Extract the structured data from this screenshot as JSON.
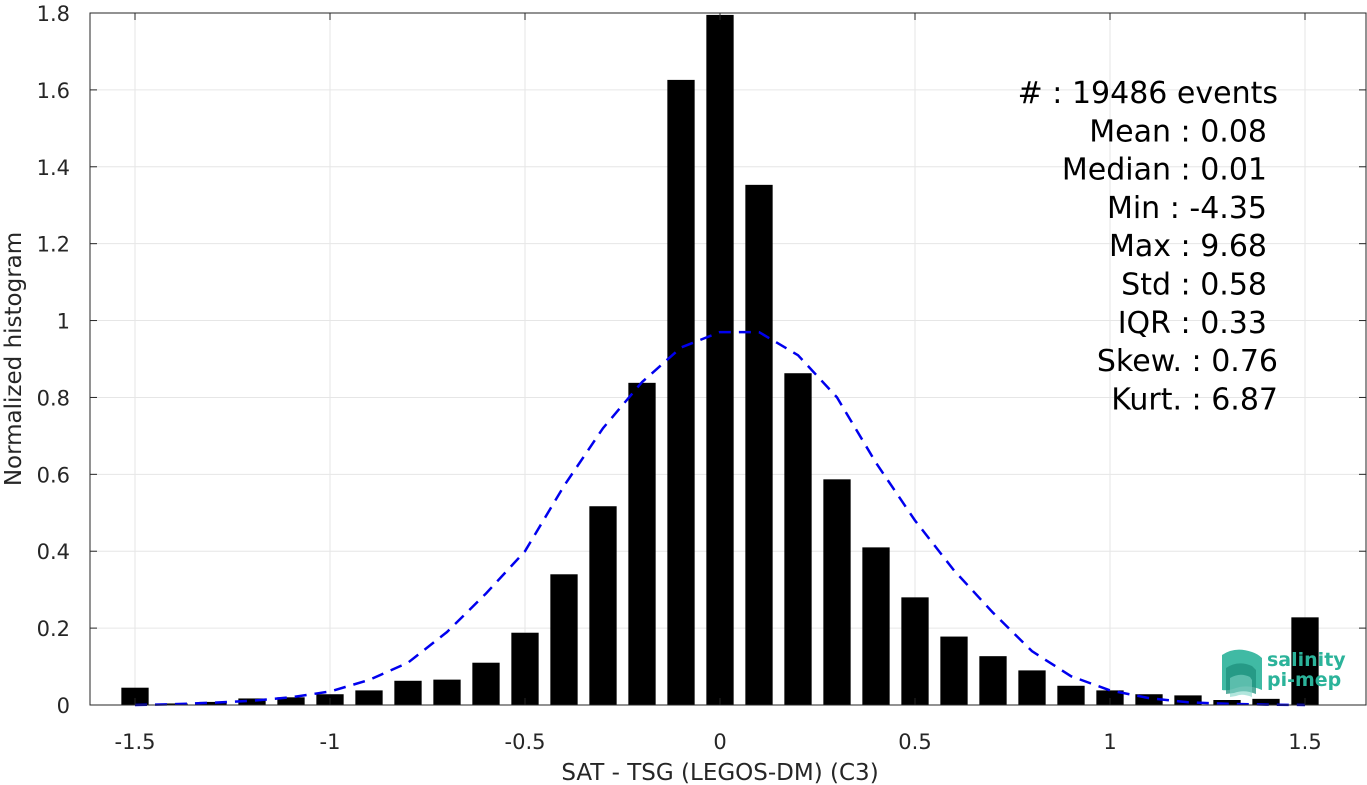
{
  "chart_data": {
    "type": "bar",
    "xlabel": "SAT - TSG (LEGOS-DM) (C3)",
    "ylabel": "Normalized histogram",
    "xlim": [
      -1.55,
      1.55
    ],
    "ylim": [
      0,
      1.8
    ],
    "xticks": [
      -1.5,
      -1,
      -0.5,
      0,
      0.5,
      1,
      1.5
    ],
    "xtick_labels": [
      "-1.5",
      "-1",
      "-0.5",
      "0",
      "0.5",
      "1",
      "1.5"
    ],
    "yticks": [
      0,
      0.2,
      0.4,
      0.6,
      0.8,
      1,
      1.2,
      1.4,
      1.6,
      1.8
    ],
    "ytick_labels": [
      "0",
      "0.2",
      "0.4",
      "0.6",
      "0.8",
      "1",
      "1.2",
      "1.4",
      "1.6",
      "1.8"
    ],
    "grid": true,
    "bar_color": "#000000",
    "bar_width": 0.07,
    "bars": {
      "x": [
        -1.5,
        -1.4,
        -1.3,
        -1.2,
        -1.1,
        -1.0,
        -0.9,
        -0.8,
        -0.7,
        -0.6,
        -0.5,
        -0.4,
        -0.3,
        -0.2,
        -0.1,
        0.0,
        0.1,
        0.2,
        0.3,
        0.4,
        0.5,
        0.6,
        0.7,
        0.8,
        0.9,
        1.0,
        1.1,
        1.2,
        1.3,
        1.4,
        1.5
      ],
      "values": [
        0.045,
        0.004,
        0.008,
        0.017,
        0.02,
        0.028,
        0.038,
        0.063,
        0.066,
        0.11,
        0.188,
        0.34,
        0.517,
        0.838,
        1.626,
        1.795,
        1.353,
        0.863,
        0.587,
        0.41,
        0.28,
        0.178,
        0.127,
        0.09,
        0.05,
        0.038,
        0.028,
        0.025,
        0.013,
        0.016,
        0.228
      ]
    },
    "fit_curve": {
      "style": "dashed",
      "color": "#0000ee",
      "x": [
        -1.5,
        -1.4,
        -1.3,
        -1.2,
        -1.1,
        -1.0,
        -0.9,
        -0.8,
        -0.7,
        -0.6,
        -0.5,
        -0.4,
        -0.3,
        -0.2,
        -0.1,
        0.0,
        0.1,
        0.2,
        0.3,
        0.4,
        0.5,
        0.6,
        0.7,
        0.8,
        0.9,
        1.0,
        1.1,
        1.2,
        1.3,
        1.4,
        1.5
      ],
      "y": [
        0.0,
        0.002,
        0.006,
        0.011,
        0.02,
        0.035,
        0.065,
        0.11,
        0.19,
        0.29,
        0.4,
        0.57,
        0.72,
        0.84,
        0.93,
        0.97,
        0.97,
        0.91,
        0.8,
        0.63,
        0.48,
        0.35,
        0.24,
        0.14,
        0.075,
        0.038,
        0.018,
        0.007,
        0.003,
        0.001,
        0.0
      ]
    },
    "annotations": [
      "#  : 19486 events",
      "Mean : 0.08",
      "Median : 0.01",
      "Min : -4.35",
      "Max : 9.68",
      "Std : 0.58",
      "IQR : 0.33",
      "Skew. : 0.76",
      "Kurt. : 6.87"
    ]
  },
  "logo": {
    "line1": "salinity",
    "line2": "pi-mep",
    "color": "#2bb39a"
  }
}
